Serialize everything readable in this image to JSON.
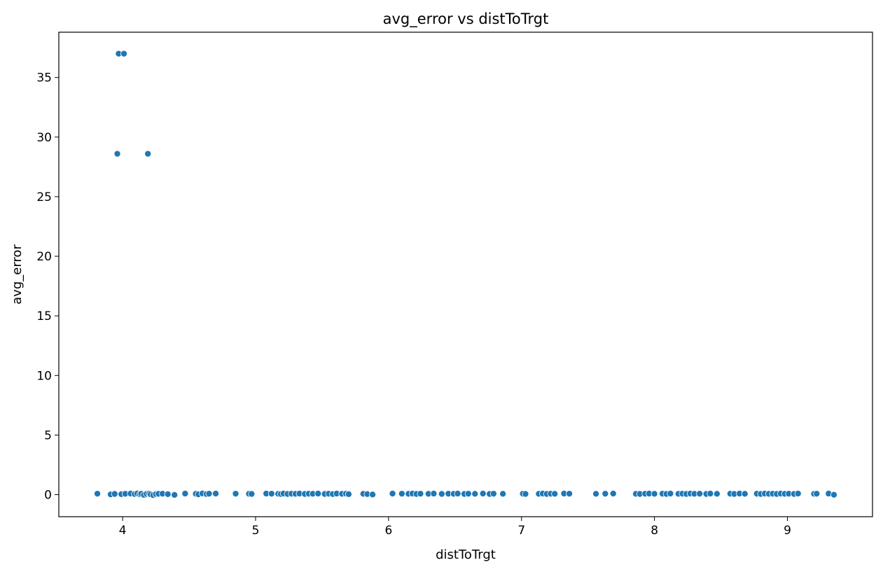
{
  "chart_data": {
    "type": "scatter",
    "title": "avg_error vs distToTrgt",
    "xlabel": "distToTrgt",
    "ylabel": "avg_error",
    "xlim": [
      3.52,
      9.64
    ],
    "ylim": [
      -1.85,
      38.8
    ],
    "xticks": [
      4,
      5,
      6,
      7,
      8,
      9
    ],
    "yticks": [
      0,
      5,
      10,
      15,
      20,
      25,
      30,
      35
    ],
    "grid": false,
    "marker_color": "#1f77b4",
    "marker_edge": "#ffffff",
    "points": [
      {
        "x": 3.97,
        "y": 37.0
      },
      {
        "x": 4.01,
        "y": 37.0
      },
      {
        "x": 3.96,
        "y": 28.6
      },
      {
        "x": 4.19,
        "y": 28.6
      },
      {
        "x": 3.81,
        "y": 0.08
      },
      {
        "x": 3.91,
        "y": 0.02
      },
      {
        "x": 3.94,
        "y": 0.06
      },
      {
        "x": 3.99,
        "y": 0.04
      },
      {
        "x": 4.02,
        "y": 0.07
      },
      {
        "x": 4.06,
        "y": 0.09
      },
      {
        "x": 4.09,
        "y": 0.05
      },
      {
        "x": 4.11,
        "y": 0.1
      },
      {
        "x": 4.13,
        "y": 0.03
      },
      {
        "x": 4.14,
        "y": 0.08
      },
      {
        "x": 4.16,
        "y": -0.02
      },
      {
        "x": 4.18,
        "y": 0.06
      },
      {
        "x": 4.2,
        "y": 0.09
      },
      {
        "x": 4.21,
        "y": 0.02
      },
      {
        "x": 4.23,
        "y": -0.04
      },
      {
        "x": 4.25,
        "y": 0.05
      },
      {
        "x": 4.27,
        "y": 0.07
      },
      {
        "x": 4.3,
        "y": 0.08
      },
      {
        "x": 4.34,
        "y": 0.04
      },
      {
        "x": 4.39,
        "y": -0.02
      },
      {
        "x": 4.47,
        "y": 0.09
      },
      {
        "x": 4.55,
        "y": 0.07
      },
      {
        "x": 4.57,
        "y": 0.03
      },
      {
        "x": 4.6,
        "y": 0.1
      },
      {
        "x": 4.63,
        "y": 0.05
      },
      {
        "x": 4.65,
        "y": 0.08
      },
      {
        "x": 4.7,
        "y": 0.09
      },
      {
        "x": 4.85,
        "y": 0.08
      },
      {
        "x": 4.95,
        "y": 0.07
      },
      {
        "x": 4.97,
        "y": 0.06
      },
      {
        "x": 5.08,
        "y": 0.09
      },
      {
        "x": 5.12,
        "y": 0.08
      },
      {
        "x": 5.17,
        "y": 0.07
      },
      {
        "x": 5.19,
        "y": 0.05
      },
      {
        "x": 5.21,
        "y": 0.09
      },
      {
        "x": 5.24,
        "y": 0.06
      },
      {
        "x": 5.27,
        "y": 0.08
      },
      {
        "x": 5.3,
        "y": 0.07
      },
      {
        "x": 5.33,
        "y": 0.09
      },
      {
        "x": 5.37,
        "y": 0.06
      },
      {
        "x": 5.4,
        "y": 0.08
      },
      {
        "x": 5.43,
        "y": 0.07
      },
      {
        "x": 5.47,
        "y": 0.09
      },
      {
        "x": 5.52,
        "y": 0.06
      },
      {
        "x": 5.55,
        "y": 0.08
      },
      {
        "x": 5.58,
        "y": 0.05
      },
      {
        "x": 5.61,
        "y": 0.09
      },
      {
        "x": 5.65,
        "y": 0.07
      },
      {
        "x": 5.68,
        "y": 0.08
      },
      {
        "x": 5.7,
        "y": 0.04
      },
      {
        "x": 5.81,
        "y": 0.07
      },
      {
        "x": 5.84,
        "y": 0.05
      },
      {
        "x": 5.88,
        "y": 0.01
      },
      {
        "x": 6.03,
        "y": 0.09
      },
      {
        "x": 6.1,
        "y": 0.08
      },
      {
        "x": 6.15,
        "y": 0.07
      },
      {
        "x": 6.18,
        "y": 0.09
      },
      {
        "x": 6.21,
        "y": 0.06
      },
      {
        "x": 6.24,
        "y": 0.08
      },
      {
        "x": 6.3,
        "y": 0.07
      },
      {
        "x": 6.34,
        "y": 0.09
      },
      {
        "x": 6.4,
        "y": 0.06
      },
      {
        "x": 6.45,
        "y": 0.08
      },
      {
        "x": 6.49,
        "y": 0.07
      },
      {
        "x": 6.52,
        "y": 0.09
      },
      {
        "x": 6.57,
        "y": 0.06
      },
      {
        "x": 6.6,
        "y": 0.08
      },
      {
        "x": 6.65,
        "y": 0.07
      },
      {
        "x": 6.71,
        "y": 0.09
      },
      {
        "x": 6.76,
        "y": 0.06
      },
      {
        "x": 6.79,
        "y": 0.08
      },
      {
        "x": 6.86,
        "y": 0.07
      },
      {
        "x": 7.01,
        "y": 0.08
      },
      {
        "x": 7.03,
        "y": 0.06
      },
      {
        "x": 7.13,
        "y": 0.07
      },
      {
        "x": 7.16,
        "y": 0.09
      },
      {
        "x": 7.19,
        "y": 0.06
      },
      {
        "x": 7.22,
        "y": 0.08
      },
      {
        "x": 7.25,
        "y": 0.07
      },
      {
        "x": 7.32,
        "y": 0.09
      },
      {
        "x": 7.36,
        "y": 0.08
      },
      {
        "x": 7.56,
        "y": 0.07
      },
      {
        "x": 7.63,
        "y": 0.08
      },
      {
        "x": 7.69,
        "y": 0.09
      },
      {
        "x": 7.86,
        "y": 0.07
      },
      {
        "x": 7.89,
        "y": 0.06
      },
      {
        "x": 7.93,
        "y": 0.08
      },
      {
        "x": 7.96,
        "y": 0.09
      },
      {
        "x": 8.0,
        "y": 0.07
      },
      {
        "x": 8.06,
        "y": 0.08
      },
      {
        "x": 8.09,
        "y": 0.06
      },
      {
        "x": 8.12,
        "y": 0.09
      },
      {
        "x": 8.18,
        "y": 0.07
      },
      {
        "x": 8.21,
        "y": 0.08
      },
      {
        "x": 8.24,
        "y": 0.06
      },
      {
        "x": 8.27,
        "y": 0.09
      },
      {
        "x": 8.3,
        "y": 0.07
      },
      {
        "x": 8.34,
        "y": 0.08
      },
      {
        "x": 8.39,
        "y": 0.06
      },
      {
        "x": 8.42,
        "y": 0.09
      },
      {
        "x": 8.47,
        "y": 0.07
      },
      {
        "x": 8.57,
        "y": 0.08
      },
      {
        "x": 8.6,
        "y": 0.06
      },
      {
        "x": 8.64,
        "y": 0.09
      },
      {
        "x": 8.68,
        "y": 0.07
      },
      {
        "x": 8.77,
        "y": 0.08
      },
      {
        "x": 8.8,
        "y": 0.06
      },
      {
        "x": 8.83,
        "y": 0.09
      },
      {
        "x": 8.86,
        "y": 0.07
      },
      {
        "x": 8.89,
        "y": 0.08
      },
      {
        "x": 8.92,
        "y": 0.06
      },
      {
        "x": 8.95,
        "y": 0.09
      },
      {
        "x": 8.98,
        "y": 0.07
      },
      {
        "x": 9.01,
        "y": 0.08
      },
      {
        "x": 9.05,
        "y": 0.06
      },
      {
        "x": 9.08,
        "y": 0.09
      },
      {
        "x": 9.2,
        "y": 0.07
      },
      {
        "x": 9.22,
        "y": 0.08
      },
      {
        "x": 9.31,
        "y": 0.09
      },
      {
        "x": 9.35,
        "y": -0.01
      }
    ]
  }
}
